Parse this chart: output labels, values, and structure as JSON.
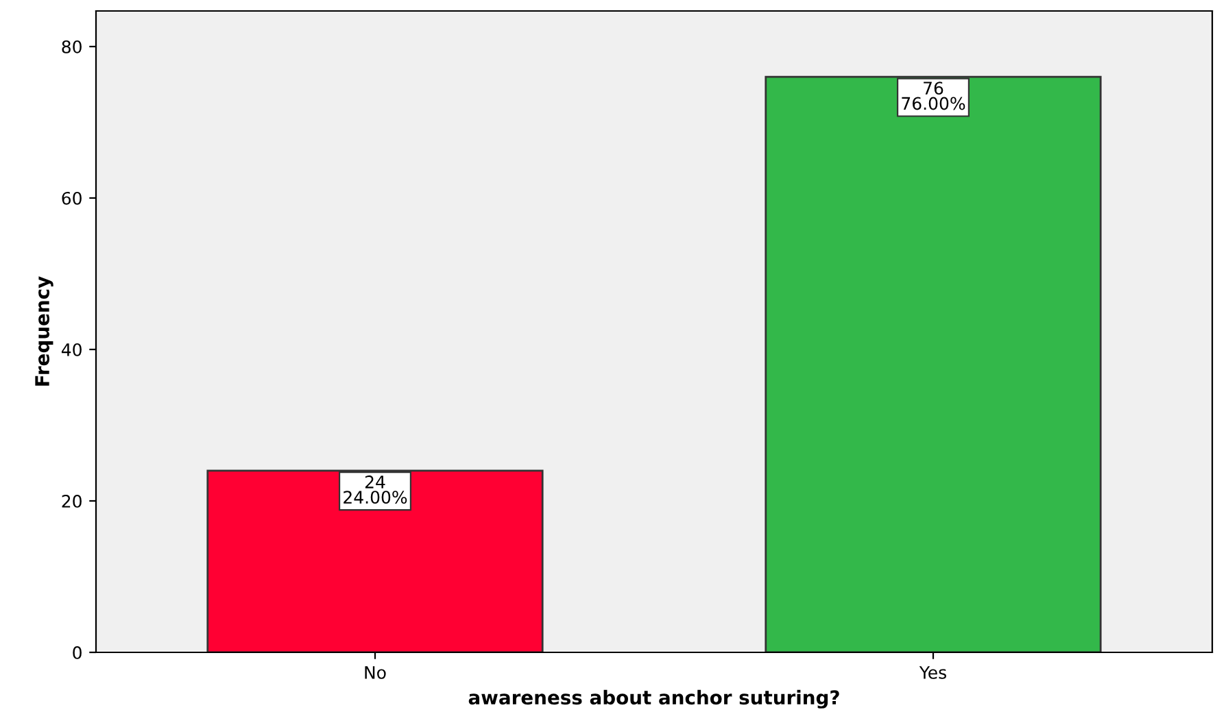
{
  "chart_data": {
    "type": "bar",
    "xlabel": "awareness about anchor suturing?",
    "ylabel": "Frequency",
    "categories": [
      "No",
      "Yes"
    ],
    "values": [
      24,
      76
    ],
    "colors": [
      "#ff0033",
      "#33b84a"
    ],
    "value_labels": [
      "24\n24.00%",
      "76\n76.00%"
    ],
    "ylim": [
      0,
      84.7
    ],
    "yticks": [
      0,
      20,
      40,
      60,
      80
    ],
    "grid": false,
    "legend": false
  }
}
